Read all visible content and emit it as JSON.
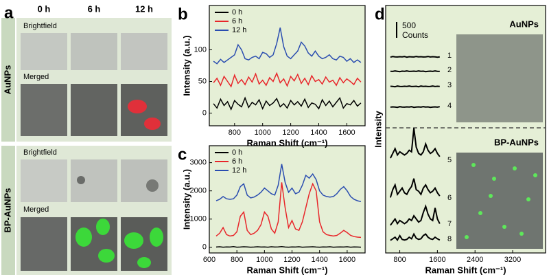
{
  "image_panel": {
    "label": "a",
    "columns": [
      "0 h",
      "6 h",
      "12 h"
    ],
    "groups": [
      {
        "name": "AuNPs",
        "rows": [
          "Brightfield",
          "Merged"
        ]
      },
      {
        "name": "BP-AuNPs",
        "rows": [
          "Brightfield",
          "Merged"
        ]
      }
    ]
  },
  "chart_data": [
    {
      "type": "line",
      "label": "b",
      "xlabel": "Raman Shift (cm⁻¹)",
      "ylabel": "Intensity (a.u.)",
      "x": [
        650,
        675,
        700,
        725,
        750,
        775,
        800,
        825,
        850,
        875,
        900,
        925,
        950,
        975,
        1000,
        1025,
        1050,
        1075,
        1100,
        1125,
        1150,
        1175,
        1200,
        1225,
        1250,
        1275,
        1300,
        1325,
        1350,
        1375,
        1400,
        1425,
        1450,
        1475,
        1500,
        1525,
        1550,
        1575,
        1600,
        1625,
        1650,
        1675,
        1700
      ],
      "xlim": [
        620,
        1730
      ],
      "xticks": [
        800,
        1000,
        1200,
        1400,
        1600
      ],
      "ylim": [
        -20,
        170
      ],
      "yticks": [
        0,
        50,
        100
      ],
      "series": [
        {
          "name": "0 h",
          "color": "#000000",
          "values": [
            15,
            8,
            22,
            12,
            18,
            6,
            20,
            14,
            10,
            24,
            9,
            17,
            13,
            21,
            7,
            19,
            12,
            16,
            23,
            10,
            15,
            8,
            20,
            13,
            18,
            11,
            22,
            9,
            16,
            14,
            7,
            21,
            12,
            19,
            10,
            17,
            24,
            8,
            15,
            13,
            20,
            11,
            16
          ]
        },
        {
          "name": "6 h",
          "color": "#e8262a",
          "values": [
            48,
            55,
            44,
            58,
            50,
            42,
            60,
            47,
            53,
            45,
            57,
            49,
            62,
            46,
            52,
            44,
            56,
            50,
            63,
            48,
            54,
            43,
            58,
            51,
            61,
            47,
            55,
            45,
            59,
            50,
            53,
            46,
            57,
            49,
            52,
            44,
            56,
            48,
            54,
            50,
            45,
            55,
            49
          ]
        },
        {
          "name": "12 h",
          "color": "#2a4db0",
          "values": [
            82,
            78,
            85,
            80,
            84,
            88,
            92,
            108,
            100,
            86,
            84,
            88,
            90,
            86,
            96,
            94,
            88,
            92,
            110,
            135,
            105,
            90,
            86,
            92,
            98,
            112,
            106,
            95,
            90,
            98,
            90,
            86,
            88,
            92,
            86,
            84,
            90,
            88,
            82,
            86,
            80,
            84,
            80
          ]
        }
      ]
    },
    {
      "type": "line",
      "label": "c",
      "xlabel": "Raman Shift (cm⁻¹)",
      "ylabel": "Intensity (a.u.)",
      "x": [
        650,
        675,
        700,
        725,
        750,
        775,
        800,
        825,
        850,
        875,
        900,
        925,
        950,
        975,
        1000,
        1025,
        1050,
        1075,
        1100,
        1125,
        1150,
        1175,
        1200,
        1225,
        1250,
        1275,
        1300,
        1325,
        1350,
        1375,
        1400,
        1425,
        1450,
        1475,
        1500,
        1525,
        1550,
        1575,
        1600,
        1625,
        1650,
        1675,
        1700
      ],
      "xlim": [
        600,
        1730
      ],
      "xticks": [
        600,
        800,
        1000,
        1200,
        1400,
        1600
      ],
      "ylim": [
        -200,
        3600
      ],
      "yticks": [
        0,
        1000,
        2000,
        3000
      ],
      "series": [
        {
          "name": "0 h",
          "color": "#000000",
          "values": [
            10,
            20,
            5,
            15,
            10,
            25,
            5,
            10,
            20,
            15,
            5,
            10,
            20,
            10,
            15,
            5,
            20,
            10,
            15,
            25,
            10,
            5,
            15,
            10,
            20,
            5,
            10,
            15,
            20,
            10,
            5,
            15,
            10,
            20,
            5,
            10,
            15,
            10,
            20,
            5,
            15,
            10,
            5
          ]
        },
        {
          "name": "6 h",
          "color": "#e8262a",
          "values": [
            400,
            500,
            700,
            450,
            400,
            420,
            550,
            1100,
            1250,
            600,
            450,
            500,
            600,
            800,
            1250,
            1100,
            650,
            500,
            900,
            2300,
            1400,
            700,
            950,
            650,
            600,
            900,
            1400,
            1900,
            2250,
            2000,
            900,
            550,
            450,
            420,
            400,
            420,
            500,
            600,
            520,
            420,
            380,
            360,
            350
          ]
        },
        {
          "name": "12 h",
          "color": "#2a4db0",
          "values": [
            1650,
            1700,
            1800,
            1720,
            1700,
            1720,
            1850,
            2150,
            2250,
            1850,
            1750,
            1780,
            1850,
            1950,
            2100,
            2000,
            1900,
            1850,
            2200,
            2950,
            2300,
            1950,
            2100,
            1900,
            1950,
            2200,
            2550,
            2450,
            2600,
            2400,
            2000,
            1850,
            1800,
            1780,
            1800,
            1900,
            2050,
            2150,
            2000,
            1800,
            1700,
            1650,
            1620
          ]
        }
      ]
    },
    {
      "type": "spectra",
      "label": "d",
      "xlabel": "Raman Shift (cm⁻¹)",
      "ylabel": "Intensity",
      "groups": [
        "AuNPs",
        "BP-AuNPs"
      ],
      "scale_bar": {
        "value": 500,
        "label": "500 Counts"
      },
      "x": [
        600,
        650,
        700,
        750,
        800,
        850,
        900,
        950,
        1000,
        1050,
        1100,
        1150,
        1200,
        1250,
        1300,
        1350,
        1400,
        1450,
        1500,
        1550,
        1600,
        1650
      ],
      "xlim": [
        500,
        3900
      ],
      "xticks": [
        800,
        1600,
        2400,
        3200
      ],
      "series": [
        {
          "name": "1",
          "color": "#000000",
          "values": [
            40,
            60,
            50,
            45,
            55,
            50,
            60,
            40,
            55,
            50,
            45,
            60,
            50,
            55,
            45,
            50,
            60,
            45,
            55,
            50,
            40,
            50
          ]
        },
        {
          "name": "2",
          "color": "#000000",
          "values": [
            50,
            45,
            60,
            50,
            40,
            55,
            50,
            60,
            45,
            50,
            55,
            45,
            60,
            50,
            55,
            40,
            50,
            55,
            45,
            60,
            50,
            45
          ]
        },
        {
          "name": "3",
          "color": "#000000",
          "values": [
            55,
            50,
            40,
            60,
            50,
            45,
            55,
            50,
            60,
            45,
            50,
            55,
            40,
            60,
            50,
            55,
            45,
            50,
            60,
            45,
            55,
            50
          ]
        },
        {
          "name": "4",
          "color": "#000000",
          "values": [
            45,
            55,
            50,
            40,
            60,
            50,
            45,
            55,
            50,
            60,
            40,
            50,
            55,
            45,
            60,
            50,
            55,
            40,
            50,
            55,
            45,
            60
          ]
        },
        {
          "name": "5",
          "color": "#000000",
          "values": [
            150,
            300,
            450,
            250,
            350,
            300,
            250,
            300,
            400,
            350,
            1100,
            500,
            300,
            250,
            350,
            600,
            400,
            300,
            350,
            450,
            300,
            200
          ]
        },
        {
          "name": "6",
          "color": "#000000",
          "values": [
            100,
            350,
            500,
            200,
            300,
            400,
            250,
            200,
            350,
            450,
            700,
            350,
            300,
            200,
            400,
            500,
            350,
            250,
            300,
            400,
            250,
            150
          ]
        },
        {
          "name": "7",
          "color": "#000000",
          "values": [
            50,
            150,
            250,
            100,
            200,
            150,
            100,
            150,
            250,
            200,
            350,
            250,
            150,
            200,
            450,
            650,
            400,
            250,
            200,
            600,
            250,
            100
          ]
        },
        {
          "name": "8",
          "color": "#000000",
          "values": [
            50,
            100,
            150,
            60,
            200,
            80,
            60,
            80,
            150,
            100,
            250,
            120,
            80,
            100,
            200,
            250,
            150,
            100,
            80,
            150,
            100,
            60
          ]
        }
      ]
    }
  ]
}
